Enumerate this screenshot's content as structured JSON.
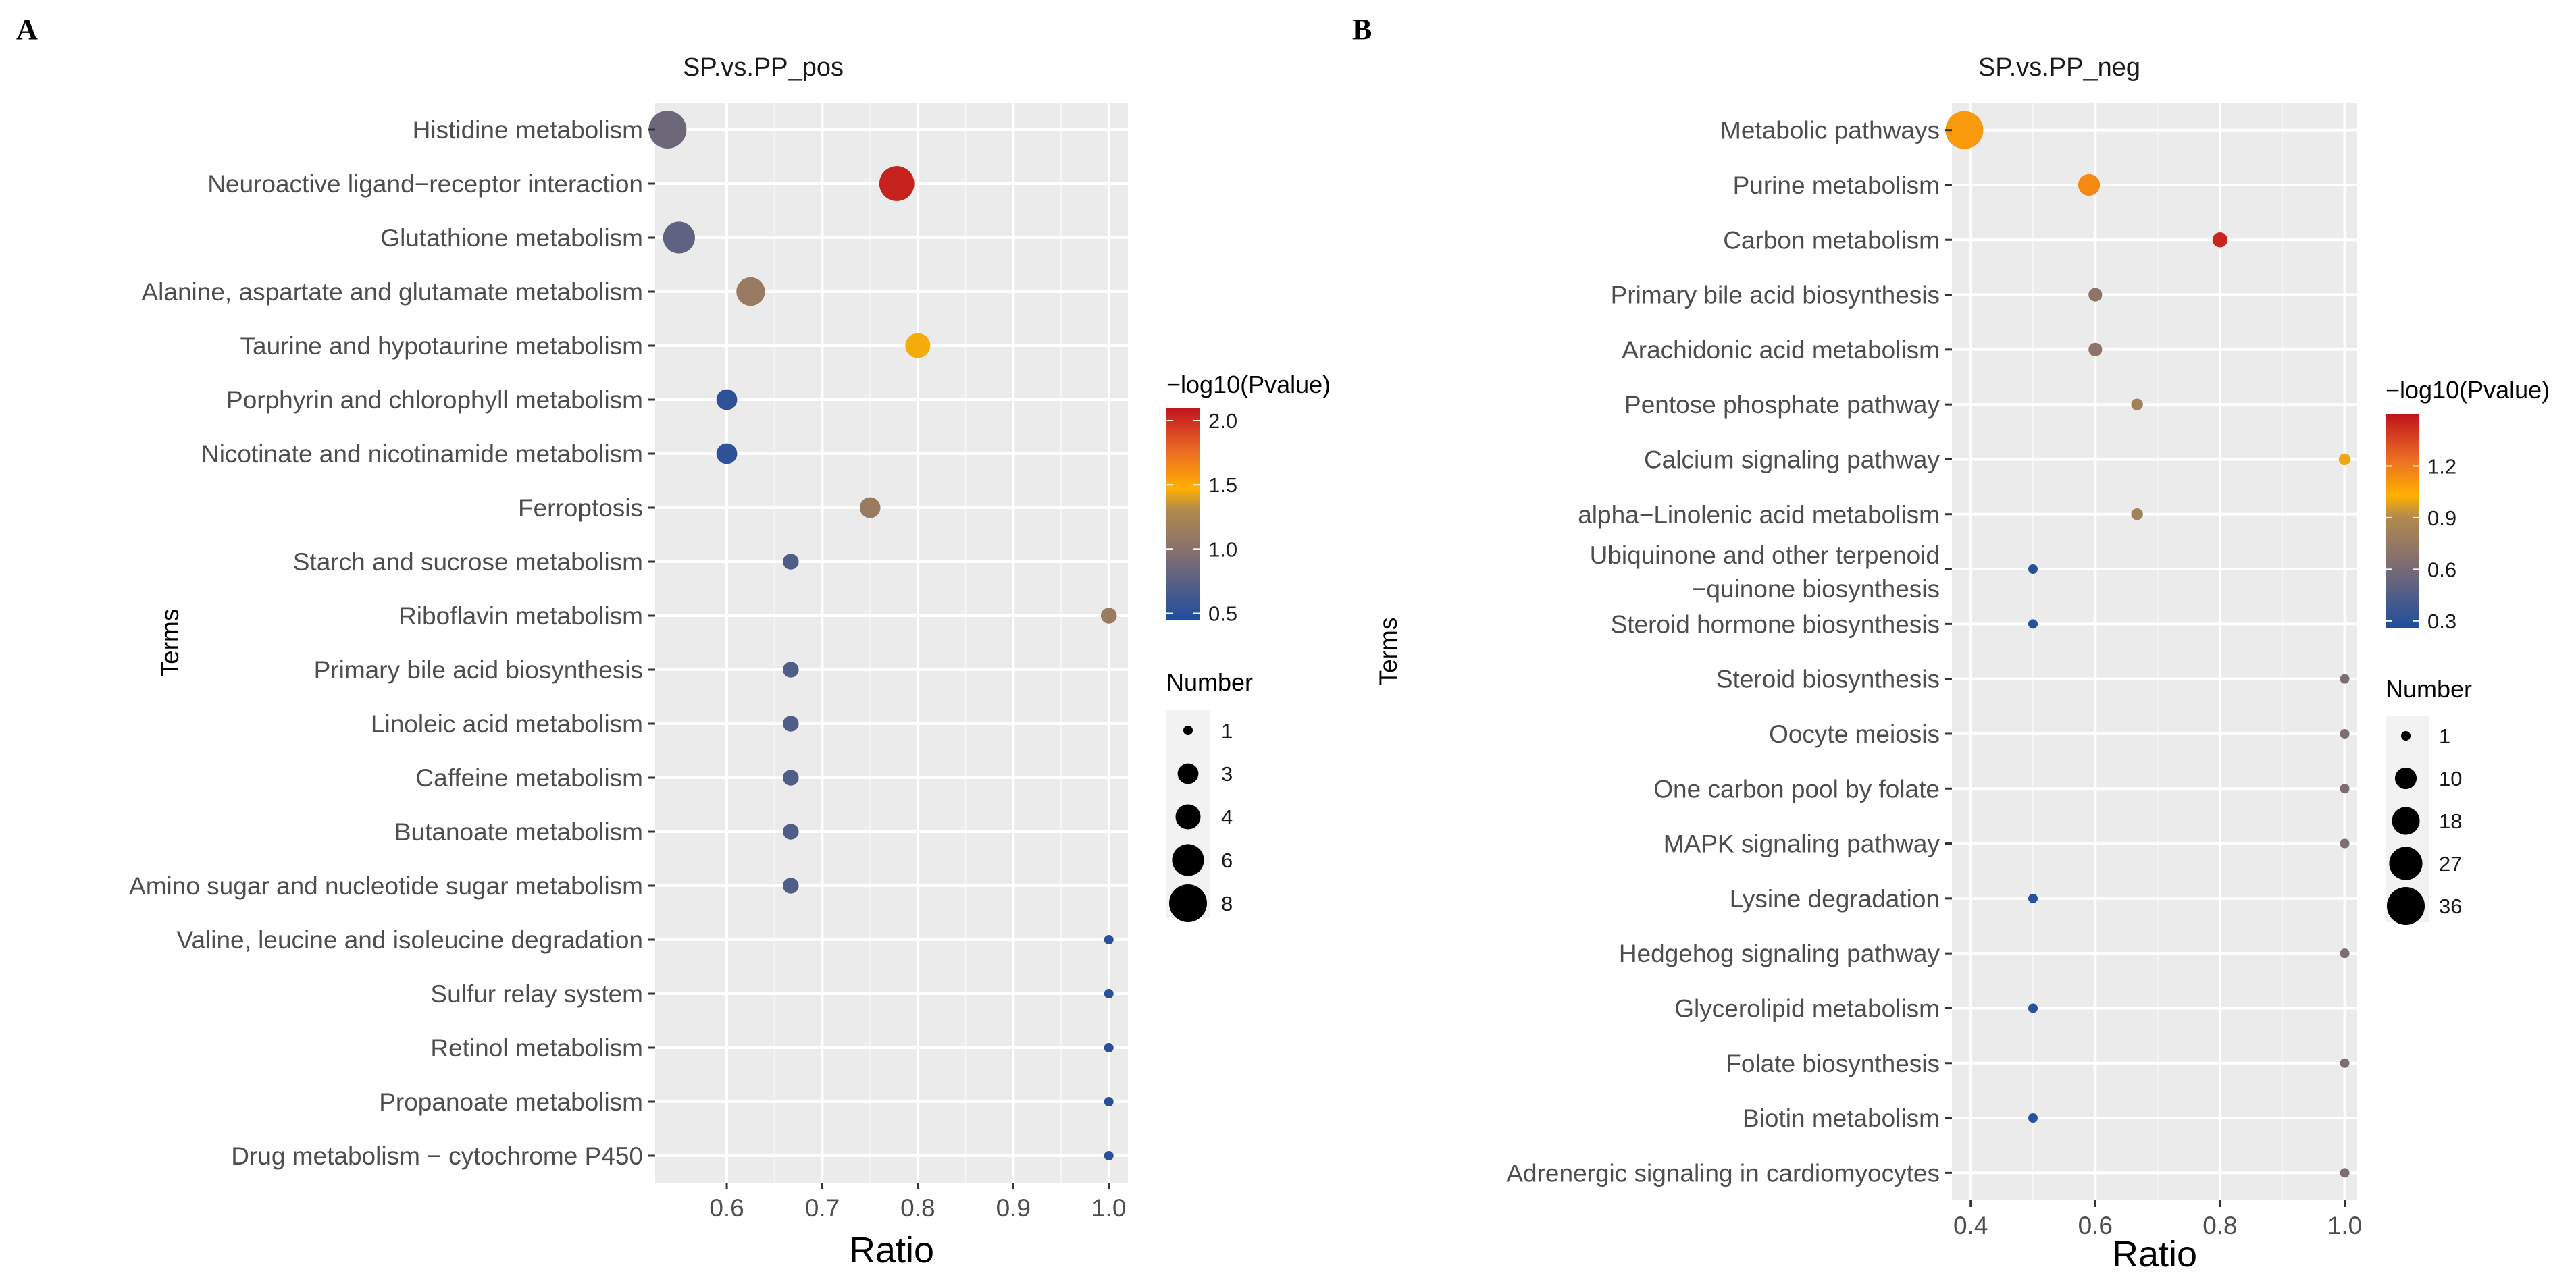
{
  "chart_data": [
    {
      "panel_label": "A",
      "type": "scatter",
      "title": "SP.vs.PP_pos",
      "xlabel": "Ratio",
      "ylabel": "Terms",
      "xlim": [
        0.525,
        1.02
      ],
      "x_ticks": [
        0.6,
        0.7,
        0.8,
        0.9,
        1.0
      ],
      "x_tick_labels": [
        "0.6",
        "0.7",
        "0.8",
        "0.9",
        "1.0"
      ],
      "grid": true,
      "points": [
        {
          "term": "Histidine metabolism",
          "ratio": 0.538,
          "number": 8,
          "neg_log10_p": 0.85
        },
        {
          "term": "Neuroactive ligand−receptor interaction",
          "ratio": 0.778,
          "number": 7,
          "neg_log10_p": 2.05
        },
        {
          "term": "Glutathione metabolism",
          "ratio": 0.55,
          "number": 6,
          "neg_log10_p": 0.78
        },
        {
          "term": "Alanine, aspartate and glutamate metabolism",
          "ratio": 0.625,
          "number": 5,
          "neg_log10_p": 1.12
        },
        {
          "term": "Taurine and hypotaurine metabolism",
          "ratio": 0.8,
          "number": 4,
          "neg_log10_p": 1.45
        },
        {
          "term": "Porphyrin and chlorophyll metabolism",
          "ratio": 0.6,
          "number": 3,
          "neg_log10_p": 0.52
        },
        {
          "term": "Nicotinate and nicotinamide metabolism",
          "ratio": 0.6,
          "number": 3,
          "neg_log10_p": 0.52
        },
        {
          "term": "Ferroptosis",
          "ratio": 0.75,
          "number": 3,
          "neg_log10_p": 1.12
        },
        {
          "term": "Starch and sucrose metabolism",
          "ratio": 0.667,
          "number": 2,
          "neg_log10_p": 0.7
        },
        {
          "term": "Riboflavin metabolism",
          "ratio": 1.0,
          "number": 2,
          "neg_log10_p": 1.12
        },
        {
          "term": "Primary bile acid biosynthesis",
          "ratio": 0.667,
          "number": 2,
          "neg_log10_p": 0.7
        },
        {
          "term": "Linoleic acid metabolism",
          "ratio": 0.667,
          "number": 2,
          "neg_log10_p": 0.7
        },
        {
          "term": "Caffeine metabolism",
          "ratio": 0.667,
          "number": 2,
          "neg_log10_p": 0.7
        },
        {
          "term": "Butanoate metabolism",
          "ratio": 0.667,
          "number": 2,
          "neg_log10_p": 0.7
        },
        {
          "term": "Amino sugar and nucleotide sugar metabolism",
          "ratio": 0.667,
          "number": 2,
          "neg_log10_p": 0.7
        },
        {
          "term": "Valine, leucine and isoleucine degradation",
          "ratio": 1.0,
          "number": 1,
          "neg_log10_p": 0.5
        },
        {
          "term": "Sulfur relay system",
          "ratio": 1.0,
          "number": 1,
          "neg_log10_p": 0.5
        },
        {
          "term": "Retinol metabolism",
          "ratio": 1.0,
          "number": 1,
          "neg_log10_p": 0.5
        },
        {
          "term": "Propanoate metabolism",
          "ratio": 1.0,
          "number": 1,
          "neg_log10_p": 0.5
        },
        {
          "term": "Drug metabolism − cytochrome P450",
          "ratio": 1.0,
          "number": 1,
          "neg_log10_p": 0.5
        }
      ],
      "color_legend": {
        "title": "−log10(Pvalue)",
        "min": 0.45,
        "max": 2.1,
        "ticks": [
          0.5,
          1.0,
          1.5,
          2.0
        ],
        "tick_labels": [
          "0.5",
          "1.0",
          "1.5",
          "2.0"
        ]
      },
      "size_legend": {
        "title": "Number",
        "min": 1,
        "max": 8,
        "values": [
          1,
          3,
          4,
          6,
          8
        ],
        "labels": [
          "1",
          "3",
          "4",
          "6",
          "8"
        ]
      }
    },
    {
      "panel_label": "B",
      "type": "scatter",
      "title": "SP.vs.PP_neg",
      "xlabel": "Ratio",
      "ylabel": "Terms",
      "xlim": [
        0.37,
        1.02
      ],
      "x_ticks": [
        0.4,
        0.6,
        0.8,
        1.0
      ],
      "x_tick_labels": [
        "0.4",
        "0.6",
        "0.8",
        "1.0"
      ],
      "grid": true,
      "points": [
        {
          "term": "Metabolic pathways",
          "ratio": 0.39,
          "number": 36,
          "neg_log10_p": 1.1
        },
        {
          "term": "Purine metabolism",
          "ratio": 0.59,
          "number": 10,
          "neg_log10_p": 1.15
        },
        {
          "term": "Carbon metabolism",
          "ratio": 0.8,
          "number": 4,
          "neg_log10_p": 1.45
        },
        {
          "term": "Primary bile acid biosynthesis",
          "ratio": 0.6,
          "number": 3,
          "neg_log10_p": 0.7
        },
        {
          "term": "Arachidonic acid metabolism",
          "ratio": 0.6,
          "number": 3,
          "neg_log10_p": 0.7
        },
        {
          "term": "Pentose phosphate pathway",
          "ratio": 0.667,
          "number": 2,
          "neg_log10_p": 0.82
        },
        {
          "term": "Calcium signaling pathway",
          "ratio": 1.0,
          "number": 2,
          "neg_log10_p": 1.0
        },
        {
          "term": "alpha−Linolenic acid metabolism",
          "ratio": 0.667,
          "number": 2,
          "neg_log10_p": 0.82
        },
        {
          "term": "Ubiquinone and other terpenoid\n−quinone biosynthesis",
          "ratio": 0.5,
          "number": 1,
          "neg_log10_p": 0.3
        },
        {
          "term": "Steroid hormone biosynthesis",
          "ratio": 0.5,
          "number": 1,
          "neg_log10_p": 0.3
        },
        {
          "term": "Steroid biosynthesis",
          "ratio": 1.0,
          "number": 1,
          "neg_log10_p": 0.62
        },
        {
          "term": "Oocyte meiosis",
          "ratio": 1.0,
          "number": 1,
          "neg_log10_p": 0.62
        },
        {
          "term": "One carbon pool by folate",
          "ratio": 1.0,
          "number": 1,
          "neg_log10_p": 0.62
        },
        {
          "term": "MAPK signaling pathway",
          "ratio": 1.0,
          "number": 1,
          "neg_log10_p": 0.62
        },
        {
          "term": "Lysine degradation",
          "ratio": 0.5,
          "number": 1,
          "neg_log10_p": 0.3
        },
        {
          "term": "Hedgehog signaling pathway",
          "ratio": 1.0,
          "number": 1,
          "neg_log10_p": 0.62
        },
        {
          "term": "Glycerolipid metabolism",
          "ratio": 0.5,
          "number": 1,
          "neg_log10_p": 0.3
        },
        {
          "term": "Folate biosynthesis",
          "ratio": 1.0,
          "number": 1,
          "neg_log10_p": 0.62
        },
        {
          "term": "Biotin metabolism",
          "ratio": 0.5,
          "number": 1,
          "neg_log10_p": 0.3
        },
        {
          "term": "Adrenergic signaling in cardiomyocytes",
          "ratio": 1.0,
          "number": 1,
          "neg_log10_p": 0.62
        }
      ],
      "color_legend": {
        "title": "−log10(Pvalue)",
        "min": 0.26,
        "max": 1.5,
        "ticks": [
          0.3,
          0.6,
          0.9,
          1.2
        ],
        "tick_labels": [
          "0.3",
          "0.6",
          "0.9",
          "1.2"
        ]
      },
      "size_legend": {
        "title": "Number",
        "min": 1,
        "max": 36,
        "values": [
          1,
          10,
          18,
          27,
          36
        ],
        "labels": [
          "1",
          "10",
          "18",
          "27",
          "36"
        ]
      }
    }
  ]
}
